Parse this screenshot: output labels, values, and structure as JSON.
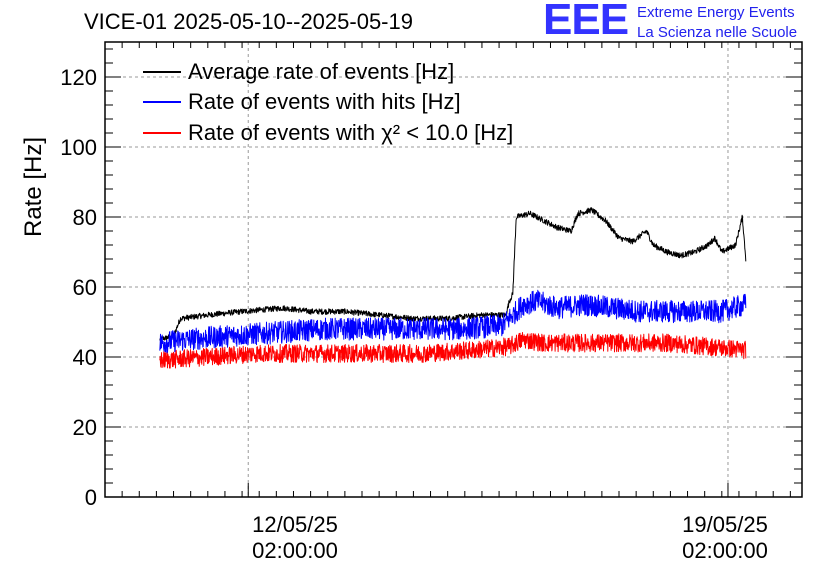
{
  "title": "VICE-01 2025-05-10--2025-05-19",
  "logo": {
    "mark": "EEE",
    "line1": "Extreme Energy Events",
    "line2": "La Scienza nelle Scuole"
  },
  "colors": {
    "average": "#000000",
    "hits": "#0000ff",
    "chi2": "#ff0000",
    "grid": "#999999"
  },
  "chart_data": {
    "type": "line",
    "title": "VICE-01 2025-05-10--2025-05-19",
    "ylabel": "Rate [Hz]",
    "xlabel": "",
    "ylim": [
      0,
      130
    ],
    "xlim_days": [
      0,
      10.17
    ],
    "y_ticks": [
      "0",
      "20",
      "40",
      "60",
      "80",
      "100",
      "120"
    ],
    "x_ticks": [
      {
        "day": 2.09,
        "line1": "12/05/25",
        "line2": "02:00:00"
      },
      {
        "day": 9.09,
        "line1": "19/05/25",
        "line2": "02:00:00"
      }
    ],
    "grid": true,
    "legend_position": "top-left",
    "series": [
      {
        "name": "Average rate of events [Hz]",
        "key": "average",
        "noise": 0.8,
        "points": [
          [
            0.8,
            45
          ],
          [
            1.0,
            46
          ],
          [
            1.1,
            51
          ],
          [
            1.5,
            52
          ],
          [
            2.0,
            53
          ],
          [
            2.6,
            54
          ],
          [
            3.0,
            53
          ],
          [
            3.5,
            53
          ],
          [
            4.0,
            52
          ],
          [
            4.5,
            51
          ],
          [
            5.0,
            51
          ],
          [
            5.5,
            52
          ],
          [
            5.85,
            52
          ],
          [
            5.9,
            56
          ],
          [
            5.95,
            58
          ],
          [
            6.0,
            80
          ],
          [
            6.2,
            81
          ],
          [
            6.4,
            79
          ],
          [
            6.6,
            77
          ],
          [
            6.8,
            76
          ],
          [
            6.9,
            81
          ],
          [
            7.1,
            82
          ],
          [
            7.3,
            79
          ],
          [
            7.5,
            74
          ],
          [
            7.7,
            73
          ],
          [
            7.9,
            76
          ],
          [
            8.0,
            72
          ],
          [
            8.2,
            70
          ],
          [
            8.4,
            69
          ],
          [
            8.6,
            70
          ],
          [
            8.8,
            72
          ],
          [
            8.9,
            74
          ],
          [
            9.0,
            70
          ],
          [
            9.2,
            72
          ],
          [
            9.3,
            80
          ],
          [
            9.35,
            68
          ]
        ]
      },
      {
        "name": "Rate of events with hits [Hz]",
        "key": "hits",
        "noise": 3.2,
        "points": [
          [
            0.8,
            44
          ],
          [
            1.2,
            45
          ],
          [
            1.8,
            46
          ],
          [
            2.5,
            47
          ],
          [
            3.2,
            48
          ],
          [
            3.8,
            48
          ],
          [
            4.5,
            48
          ],
          [
            5.2,
            48
          ],
          [
            5.8,
            49
          ],
          [
            5.95,
            52
          ],
          [
            6.1,
            55
          ],
          [
            6.3,
            56
          ],
          [
            6.6,
            54
          ],
          [
            7.0,
            55
          ],
          [
            7.4,
            54
          ],
          [
            7.8,
            53
          ],
          [
            8.2,
            53
          ],
          [
            8.6,
            53
          ],
          [
            9.0,
            53
          ],
          [
            9.35,
            55
          ]
        ]
      },
      {
        "name": "Rate of events with χ² < 10.0 [Hz]",
        "key": "chi2",
        "noise": 2.6,
        "points": [
          [
            0.8,
            39
          ],
          [
            1.5,
            40
          ],
          [
            2.2,
            41
          ],
          [
            3.0,
            41
          ],
          [
            3.8,
            41
          ],
          [
            4.6,
            41
          ],
          [
            5.4,
            42
          ],
          [
            5.9,
            43
          ],
          [
            6.1,
            45
          ],
          [
            6.4,
            44
          ],
          [
            7.0,
            44
          ],
          [
            7.6,
            44
          ],
          [
            8.2,
            44
          ],
          [
            8.8,
            43
          ],
          [
            9.35,
            42
          ]
        ]
      }
    ]
  },
  "legend": {
    "average": "Average rate of events [Hz]",
    "hits": "Rate of events with hits [Hz]",
    "chi2": "Rate of events with χ² < 10.0 [Hz]"
  }
}
